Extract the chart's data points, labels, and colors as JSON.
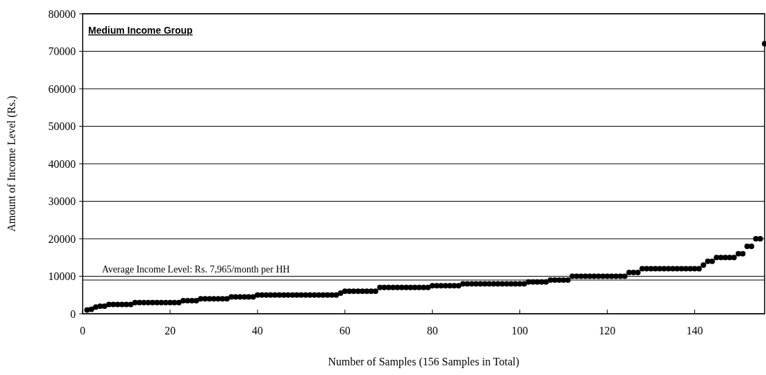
{
  "chart_data": {
    "type": "scatter",
    "title": "Medium Income Group",
    "xlabel": "Number of Samples (156 Samples in Total)",
    "ylabel": "Amount of Income Level (Rs.)",
    "x": [
      1,
      2,
      3,
      4,
      5,
      6,
      7,
      8,
      9,
      10,
      11,
      12,
      13,
      14,
      15,
      16,
      17,
      18,
      19,
      20,
      21,
      22,
      23,
      24,
      25,
      26,
      27,
      28,
      29,
      30,
      31,
      32,
      33,
      34,
      35,
      36,
      37,
      38,
      39,
      40,
      41,
      42,
      43,
      44,
      45,
      46,
      47,
      48,
      49,
      50,
      51,
      52,
      53,
      54,
      55,
      56,
      57,
      58,
      59,
      60,
      61,
      62,
      63,
      64,
      65,
      66,
      67,
      68,
      69,
      70,
      71,
      72,
      73,
      74,
      75,
      76,
      77,
      78,
      79,
      80,
      81,
      82,
      83,
      84,
      85,
      86,
      87,
      88,
      89,
      90,
      91,
      92,
      93,
      94,
      95,
      96,
      97,
      98,
      99,
      100,
      101,
      102,
      103,
      104,
      105,
      106,
      107,
      108,
      109,
      110,
      111,
      112,
      113,
      114,
      115,
      116,
      117,
      118,
      119,
      120,
      121,
      122,
      123,
      124,
      125,
      126,
      127,
      128,
      129,
      130,
      131,
      132,
      133,
      134,
      135,
      136,
      137,
      138,
      139,
      140,
      141,
      142,
      143,
      144,
      145,
      146,
      147,
      148,
      149,
      150,
      151,
      152,
      153,
      154,
      155,
      156
    ],
    "series": [
      {
        "color": "#000000",
        "values": [
          1000,
          1200,
          1800,
          2000,
          2000,
          2500,
          2500,
          2500,
          2500,
          2500,
          2500,
          3000,
          3000,
          3000,
          3000,
          3000,
          3000,
          3000,
          3000,
          3000,
          3000,
          3000,
          3500,
          3500,
          3500,
          3500,
          4000,
          4000,
          4000,
          4000,
          4000,
          4000,
          4000,
          4500,
          4500,
          4500,
          4500,
          4500,
          4500,
          5000,
          5000,
          5000,
          5000,
          5000,
          5000,
          5000,
          5000,
          5000,
          5000,
          5000,
          5000,
          5000,
          5000,
          5000,
          5000,
          5000,
          5000,
          5000,
          5500,
          6000,
          6000,
          6000,
          6000,
          6000,
          6000,
          6000,
          6000,
          7000,
          7000,
          7000,
          7000,
          7000,
          7000,
          7000,
          7000,
          7000,
          7000,
          7000,
          7000,
          7500,
          7500,
          7500,
          7500,
          7500,
          7500,
          7500,
          8000,
          8000,
          8000,
          8000,
          8000,
          8000,
          8000,
          8000,
          8000,
          8000,
          8000,
          8000,
          8000,
          8000,
          8000,
          8500,
          8500,
          8500,
          8500,
          8500,
          9000,
          9000,
          9000,
          9000,
          9000,
          10000,
          10000,
          10000,
          10000,
          10000,
          10000,
          10000,
          10000,
          10000,
          10000,
          10000,
          10000,
          10000,
          11000,
          11000,
          11000,
          12000,
          12000,
          12000,
          12000,
          12000,
          12000,
          12000,
          12000,
          12000,
          12000,
          12000,
          12000,
          12000,
          12000,
          13000,
          14000,
          14000,
          15000,
          15000,
          15000,
          15000,
          15000,
          16000,
          16000,
          18000,
          18000,
          20000,
          20000,
          72000
        ]
      }
    ],
    "xlim": [
      0,
      156
    ],
    "xticks": [
      0,
      20,
      40,
      60,
      80,
      100,
      120,
      140
    ],
    "ylim": [
      0,
      80000
    ],
    "yticks": [
      0,
      10000,
      20000,
      30000,
      40000,
      50000,
      60000,
      70000,
      80000
    ],
    "grid": "y",
    "marker": "circle",
    "ref_lines": [
      {
        "axis": "y",
        "value": 9000,
        "label": "Average Income Level: Rs. 7,965/month per HH",
        "color": "#808080"
      }
    ]
  }
}
